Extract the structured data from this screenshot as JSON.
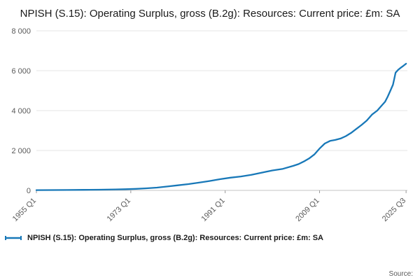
{
  "title": "NPISH (S.15): Operating Surplus, gross (B.2g): Resources: Current price: £m: SA",
  "legend": {
    "label": "NPISH (S.15): Operating Surplus, gross (B.2g): Resources: Current price: £m: SA"
  },
  "source_label": "Source:",
  "chart_data": {
    "type": "line",
    "title": "NPISH (S.15): Operating Surplus, gross (B.2g): Resources: Current price: £m: SA",
    "xlabel": "",
    "ylabel": "",
    "xlim": [
      1955,
      2025.75
    ],
    "ylim": [
      0,
      8000
    ],
    "grid": "horizontal",
    "legend_position": "bottom-left",
    "line_color": "#1878b8",
    "x_ticks": [
      1955,
      1973,
      1991,
      2009,
      2025.5
    ],
    "x_tick_labels": [
      "1955 Q1",
      "1973 Q1",
      "1991 Q1",
      "2009 Q1",
      "2025 Q3"
    ],
    "y_ticks": [
      0,
      2000,
      4000,
      6000,
      8000
    ],
    "y_tick_labels": [
      "0",
      "2 000",
      "4 000",
      "6 000",
      "8 000"
    ],
    "series": [
      {
        "name": "NPISH (S.15): Operating Surplus, gross (B.2g): Resources: Current price: £m: SA",
        "x": [
          1955,
          1958,
          1961,
          1964,
          1967,
          1970,
          1972,
          1974,
          1976,
          1978,
          1980,
          1982,
          1984,
          1986,
          1988,
          1990,
          1992,
          1994,
          1996,
          1998,
          2000,
          2002,
          2004,
          2005,
          2006,
          2007,
          2008,
          2009,
          2010,
          2011,
          2012,
          2013,
          2014,
          2015,
          2016,
          2017,
          2018,
          2019,
          2020,
          2021,
          2021.5,
          2022,
          2022.5,
          2023,
          2023.25,
          2023.5,
          2024,
          2024.5,
          2025,
          2025.5
        ],
        "values": [
          15,
          18,
          22,
          28,
          36,
          48,
          60,
          78,
          105,
          140,
          195,
          255,
          315,
          390,
          470,
          560,
          640,
          700,
          780,
          890,
          1000,
          1080,
          1230,
          1320,
          1450,
          1600,
          1800,
          2100,
          2350,
          2480,
          2530,
          2600,
          2720,
          2880,
          3080,
          3280,
          3500,
          3800,
          4000,
          4300,
          4450,
          4700,
          5000,
          5300,
          5600,
          5900,
          6050,
          6150,
          6250,
          6350
        ]
      }
    ]
  }
}
